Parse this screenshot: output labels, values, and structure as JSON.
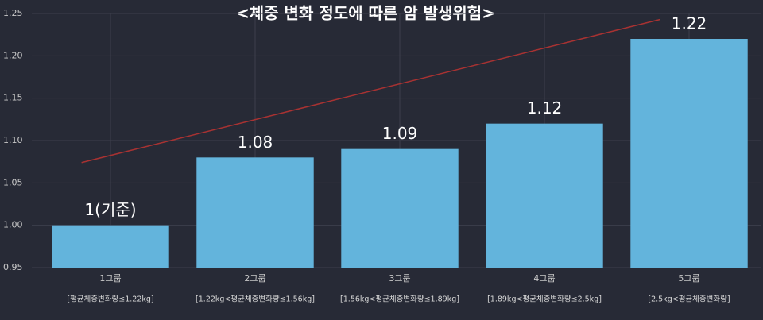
{
  "chart_data": {
    "type": "bar",
    "title": "<체중 변화 정도에 따른 암 발생위험>",
    "categories": [
      "1그룹",
      "2그룹",
      "3그룹",
      "4그룹",
      "5그룹"
    ],
    "sublabels": [
      "[평균체중변화량≤1.22kg]",
      "[1.22kg<평균체중변화량≤1.56kg]",
      "[1.56kg<평균체중변화량≤1.89kg]",
      "[1.89kg<평균체중변화량≤2.5kg]",
      "[2.5kg<평균체중변화량]"
    ],
    "values": [
      1,
      1.08,
      1.09,
      1.12,
      1.22
    ],
    "value_labels": [
      "1(기준)",
      "1.08",
      "1.09",
      "1.12",
      "1.22"
    ],
    "color": "#63b4dc",
    "trendline": {
      "color": "#a83232",
      "values": [
        1.074,
        1.243
      ]
    },
    "ylim": [
      0.95,
      1.25
    ],
    "yticks": [
      0.95,
      {
        "value": 1,
        "label": "1.00"
      },
      1.05,
      {
        "value": 1.1,
        "label": "1.10"
      },
      1.15,
      {
        "value": 1.2,
        "label": "1.20"
      },
      1.25
    ],
    "grid": true
  }
}
